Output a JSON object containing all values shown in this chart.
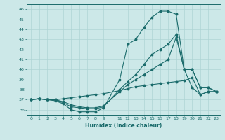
{
  "xlabel": "Humidex (Indice chaleur)",
  "bg_color": "#cce8e8",
  "line_color": "#1a6b6b",
  "grid_color": "#afd4d4",
  "xlim": [
    -0.5,
    23.5
  ],
  "ylim": [
    35.5,
    46.5
  ],
  "xticks": [
    0,
    1,
    2,
    3,
    4,
    5,
    6,
    7,
    8,
    9,
    11,
    12,
    13,
    14,
    15,
    16,
    17,
    18,
    19,
    20,
    21,
    22,
    23
  ],
  "yticks": [
    36,
    37,
    38,
    39,
    40,
    41,
    42,
    43,
    44,
    45,
    46
  ],
  "lines": [
    {
      "x": [
        0,
        1,
        2,
        3,
        4,
        5,
        6,
        7,
        8,
        9,
        11,
        12,
        13,
        14,
        15,
        16,
        17,
        18,
        19,
        20,
        21,
        22,
        23
      ],
      "y": [
        37.0,
        37.1,
        37.0,
        36.9,
        36.6,
        36.0,
        35.8,
        35.8,
        35.8,
        36.2,
        39.0,
        42.5,
        43.0,
        44.2,
        45.2,
        45.8,
        45.8,
        45.5,
        40.0,
        38.2,
        37.5,
        37.8,
        37.8
      ]
    },
    {
      "x": [
        0,
        1,
        2,
        3,
        4,
        5,
        6,
        7,
        8,
        9,
        11,
        12,
        13,
        14,
        15,
        16,
        17,
        18,
        19,
        20,
        21,
        22,
        23
      ],
      "y": [
        37.0,
        37.1,
        37.0,
        37.0,
        36.7,
        36.3,
        36.2,
        36.1,
        36.1,
        36.3,
        38.0,
        38.8,
        39.5,
        40.5,
        41.5,
        42.0,
        42.5,
        43.5,
        40.0,
        40.0,
        38.2,
        38.2,
        37.8
      ]
    },
    {
      "x": [
        0,
        1,
        2,
        3,
        4,
        5,
        6,
        7,
        8,
        9,
        11,
        12,
        13,
        14,
        15,
        16,
        17,
        18,
        19,
        20,
        21,
        22,
        23
      ],
      "y": [
        37.0,
        37.1,
        37.0,
        37.0,
        36.8,
        36.5,
        36.3,
        36.2,
        36.2,
        36.4,
        37.8,
        38.5,
        39.0,
        39.5,
        40.0,
        40.5,
        41.0,
        43.2,
        40.0,
        40.0,
        38.2,
        38.2,
        37.8
      ]
    },
    {
      "x": [
        0,
        1,
        2,
        3,
        4,
        5,
        6,
        7,
        8,
        9,
        11,
        12,
        13,
        14,
        15,
        16,
        17,
        18,
        19,
        20,
        21,
        22,
        23
      ],
      "y": [
        37.0,
        37.1,
        37.0,
        37.0,
        37.1,
        37.2,
        37.3,
        37.4,
        37.5,
        37.6,
        37.9,
        38.1,
        38.3,
        38.4,
        38.5,
        38.6,
        38.7,
        38.8,
        38.9,
        39.2,
        37.5,
        37.8,
        37.8
      ]
    }
  ]
}
